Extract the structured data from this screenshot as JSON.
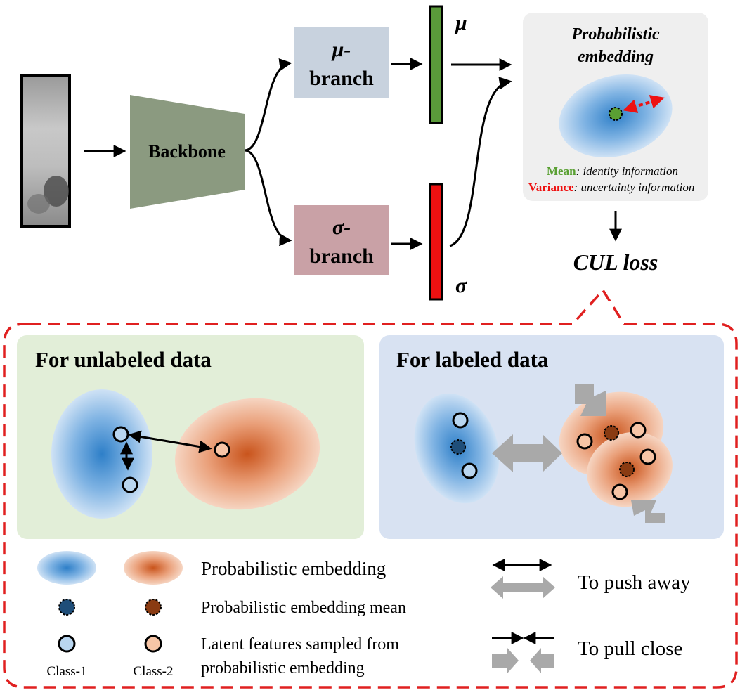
{
  "pipeline": {
    "backbone_label": "Backbone",
    "mu_branch": {
      "line1": "μ-",
      "line2": "branch"
    },
    "sigma_branch": {
      "line1": "σ-",
      "line2": "branch"
    },
    "mu_symbol": "μ",
    "sigma_symbol": "σ",
    "colors": {
      "mu_bar": "#5a9a3a",
      "sigma_bar": "#ee1111",
      "backbone": "#8b9a80",
      "mu_box": "#c8d2de",
      "sigma_box": "#c9a1a6"
    }
  },
  "prob_panel": {
    "title_line1": "Probabilistic",
    "title_line2": "embedding",
    "mean_key": "Mean",
    "mean_text": ": identity information",
    "variance_key": "Variance",
    "variance_text": ": uncertainty information",
    "colors": {
      "mean": "#5aa033",
      "variance": "#ee1111"
    }
  },
  "loss_label": "CUL loss",
  "unlabeled_panel": {
    "title": "For unlabeled data",
    "bg": "#e2eed8"
  },
  "labeled_panel": {
    "title": "For labeled data",
    "bg": "#d8e2f2"
  },
  "legend": {
    "prob_embedding": "Probabilistic embedding",
    "prob_mean": "Probabilistic embedding mean",
    "latent_line1": "Latent features sampled from",
    "latent_line2": "probabilistic embedding",
    "class1": "Class-1",
    "class2": "Class-2",
    "push_away": "To push away",
    "pull_close": "To pull close"
  }
}
